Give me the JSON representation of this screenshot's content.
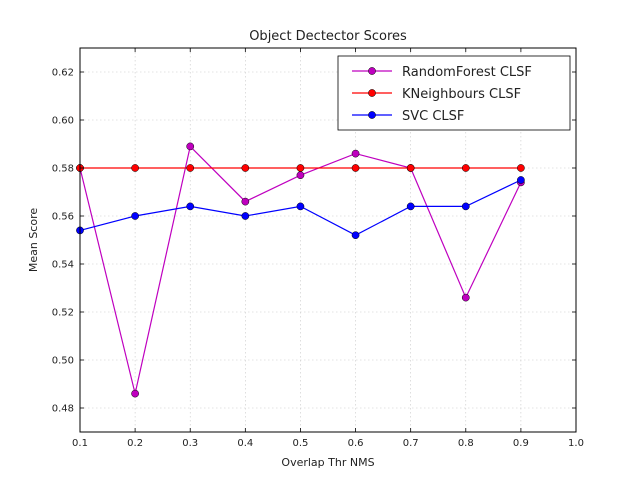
{
  "chart_data": {
    "type": "line",
    "title": "Object Dectector Scores",
    "xlabel": "Overlap Thr NMS",
    "ylabel": "Mean Score",
    "xlim": [
      0.1,
      1.0
    ],
    "ylim": [
      0.47,
      0.63
    ],
    "xticks": [
      "0.1",
      "0.2",
      "0.3",
      "0.4",
      "0.5",
      "0.6",
      "0.7",
      "0.8",
      "0.9",
      "1.0"
    ],
    "yticks": [
      "0.48",
      "0.50",
      "0.52",
      "0.54",
      "0.56",
      "0.58",
      "0.60",
      "0.62"
    ],
    "grid": true,
    "legend_position": "top-right",
    "x": [
      0.1,
      0.2,
      0.3,
      0.4,
      0.5,
      0.6,
      0.7,
      0.8,
      0.9
    ],
    "series": [
      {
        "name": "RandomForest CLSF",
        "color": "#bf00bf",
        "values": [
          0.58,
          0.486,
          0.589,
          0.566,
          0.577,
          0.586,
          0.58,
          0.526,
          0.574
        ]
      },
      {
        "name": "KNeighbours CLSF",
        "color": "#ff0000",
        "values": [
          0.58,
          0.58,
          0.58,
          0.58,
          0.58,
          0.58,
          0.58,
          0.58,
          0.58
        ]
      },
      {
        "name": "SVC CLSF",
        "color": "#0000ff",
        "values": [
          0.554,
          0.56,
          0.564,
          0.56,
          0.564,
          0.552,
          0.564,
          0.564,
          0.575
        ]
      }
    ]
  }
}
